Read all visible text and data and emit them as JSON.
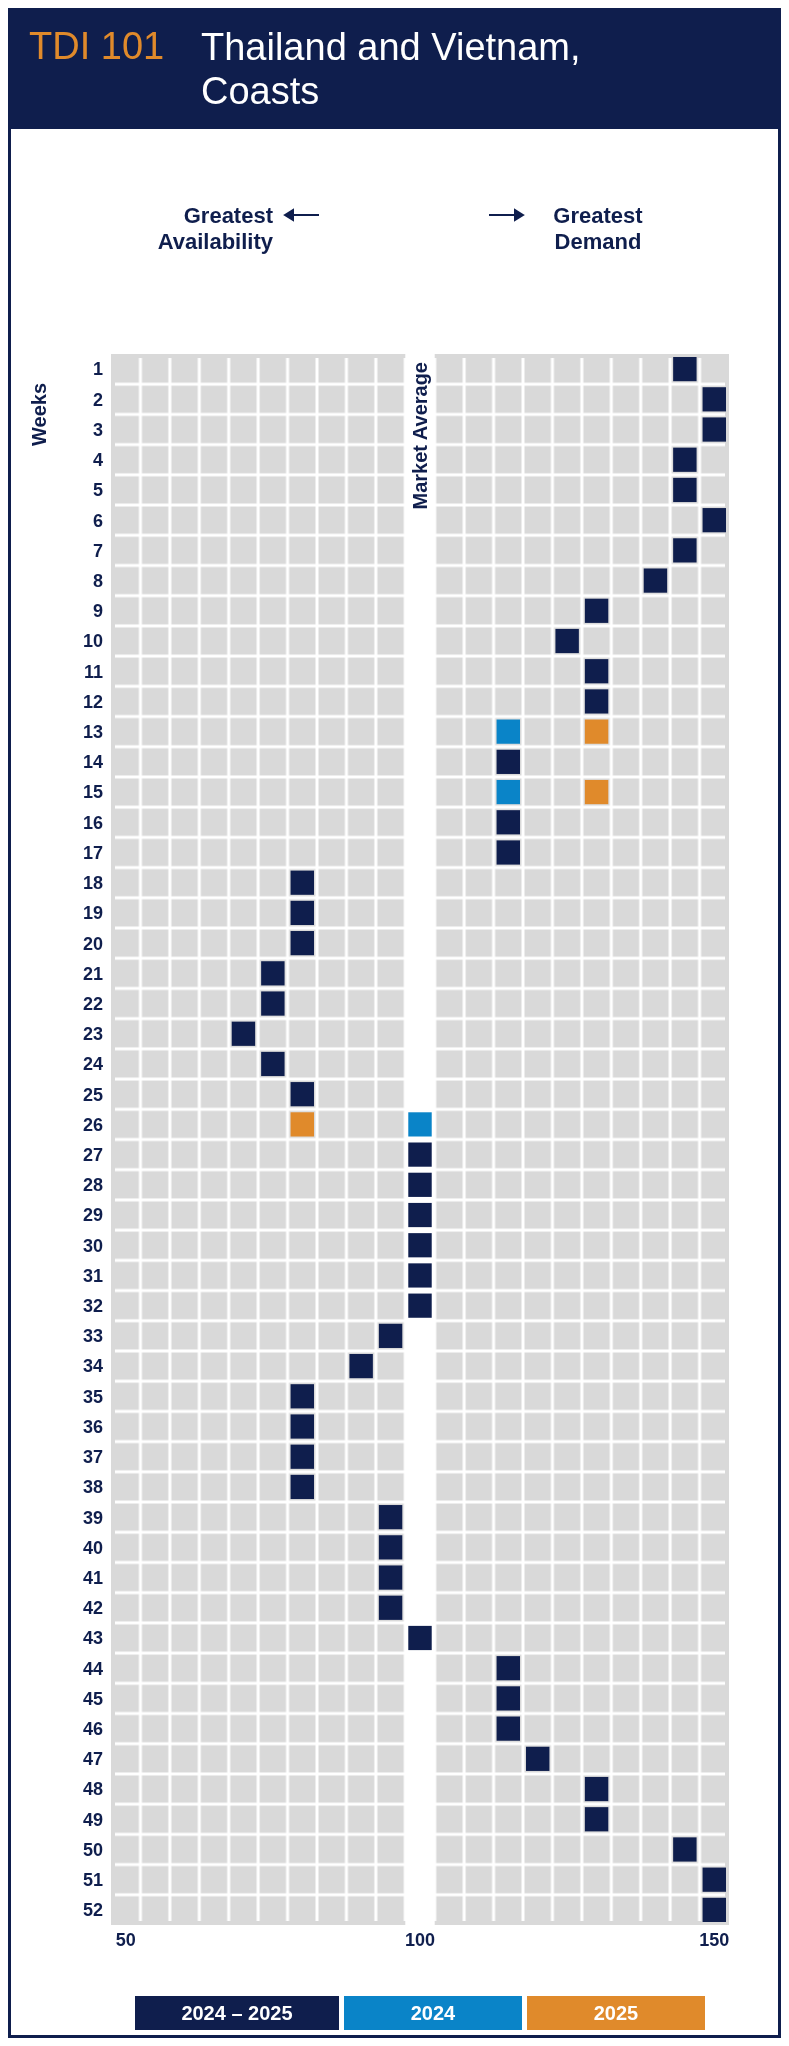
{
  "chart_data": {
    "type": "scatter",
    "title": "TDI 101",
    "subtitle": "Thailand and Vietnam, Coasts",
    "ylabel": "Weeks",
    "orientation": "horizontal",
    "categories": [
      "1",
      "2",
      "3",
      "4",
      "5",
      "6",
      "7",
      "8",
      "9",
      "10",
      "11",
      "12",
      "13",
      "14",
      "15",
      "16",
      "17",
      "18",
      "19",
      "20",
      "21",
      "22",
      "23",
      "24",
      "25",
      "26",
      "27",
      "28",
      "29",
      "30",
      "31",
      "32",
      "33",
      "34",
      "35",
      "36",
      "37",
      "38",
      "39",
      "40",
      "41",
      "42",
      "43",
      "44",
      "45",
      "46",
      "47",
      "48",
      "49",
      "50",
      "51",
      "52"
    ],
    "series": [
      {
        "name": "2024 – 2025",
        "color": "#0f1e4d",
        "values": [
          145,
          150,
          150,
          145,
          145,
          150,
          145,
          140,
          130,
          125,
          130,
          130,
          null,
          115,
          null,
          115,
          115,
          80,
          80,
          80,
          75,
          75,
          70,
          75,
          80,
          null,
          100,
          100,
          100,
          100,
          100,
          100,
          95,
          90,
          80,
          80,
          80,
          80,
          95,
          95,
          95,
          95,
          100,
          115,
          115,
          115,
          120,
          130,
          130,
          145,
          150,
          150
        ]
      },
      {
        "name": "2024",
        "color": "#0a84c8",
        "values": [
          null,
          null,
          null,
          null,
          null,
          null,
          null,
          null,
          null,
          null,
          null,
          null,
          115,
          null,
          115,
          null,
          null,
          null,
          null,
          null,
          null,
          null,
          null,
          null,
          null,
          100,
          null,
          null,
          null,
          null,
          null,
          null,
          null,
          null,
          null,
          null,
          null,
          null,
          null,
          null,
          null,
          null,
          null,
          null,
          null,
          null,
          null,
          null,
          null,
          null,
          null,
          null
        ]
      },
      {
        "name": "2025",
        "color": "#e08a2b",
        "values": [
          null,
          null,
          null,
          null,
          null,
          null,
          null,
          null,
          null,
          null,
          null,
          null,
          130,
          null,
          130,
          null,
          null,
          null,
          null,
          null,
          null,
          null,
          null,
          null,
          null,
          80,
          null,
          null,
          null,
          null,
          null,
          null,
          null,
          null,
          null,
          null,
          null,
          null,
          null,
          null,
          null,
          null,
          null,
          null,
          null,
          null,
          null,
          null,
          null,
          null,
          null,
          null
        ]
      }
    ],
    "xlim": [
      47.5,
      152.5
    ],
    "xticks": [
      50,
      100,
      150
    ],
    "ref_lines": [
      {
        "axis": "x",
        "value": 100,
        "label": "Market Average",
        "color": "#ffffff"
      }
    ],
    "annotations": [
      "Greatest Availability",
      "Greatest Demand"
    ],
    "legend": "bottom",
    "marker": "square"
  }
}
